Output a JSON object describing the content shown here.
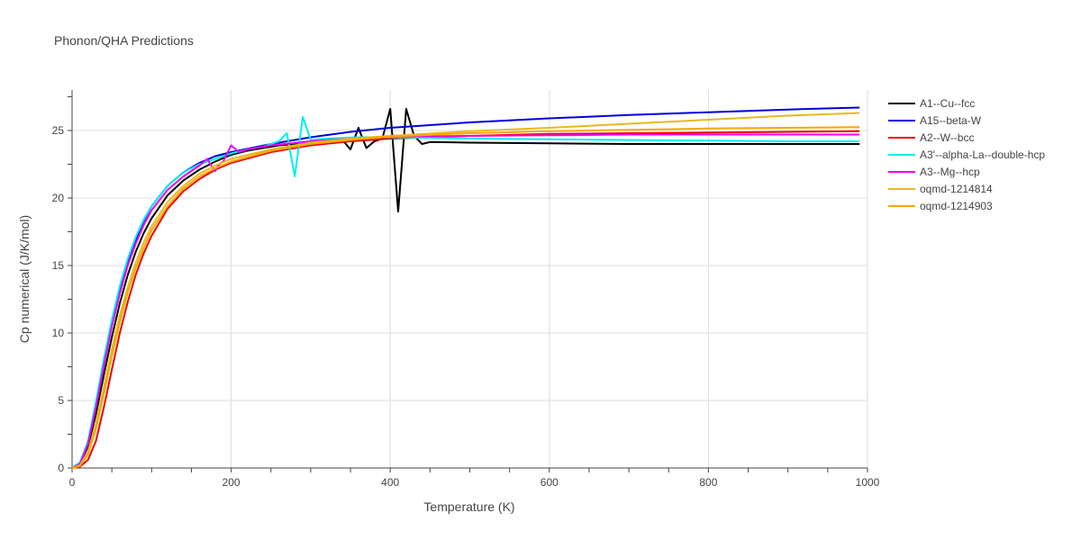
{
  "chart_data": {
    "type": "line",
    "title": "Phonon/QHA Predictions",
    "xlabel": "Temperature (K)",
    "ylabel": "Cp numerical (J/K/mol)",
    "xlim": [
      0,
      1000
    ],
    "ylim": [
      0,
      28
    ],
    "xticks": [
      0,
      200,
      400,
      600,
      800,
      1000
    ],
    "yticks": [
      0,
      5,
      10,
      15,
      20,
      25
    ],
    "grid": true,
    "legend_position": "right",
    "series": [
      {
        "name": "A1--Cu--fcc",
        "color": "#000000",
        "x": [
          0,
          10,
          20,
          30,
          40,
          50,
          60,
          70,
          80,
          90,
          100,
          120,
          140,
          160,
          180,
          200,
          220,
          240,
          260,
          280,
          300,
          320,
          340,
          350,
          360,
          370,
          380,
          390,
          400,
          410,
          420,
          430,
          440,
          450,
          500,
          600,
          700,
          800,
          900,
          990
        ],
        "y": [
          0,
          0.3,
          1.6,
          4.0,
          6.9,
          9.7,
          12.2,
          14.3,
          16.0,
          17.4,
          18.5,
          20.2,
          21.3,
          22.1,
          22.7,
          23.2,
          23.5,
          23.7,
          23.9,
          24.0,
          24.1,
          24.2,
          24.3,
          23.6,
          25.2,
          23.7,
          24.2,
          24.4,
          26.6,
          19.0,
          26.6,
          24.6,
          24.0,
          24.15,
          24.1,
          24.05,
          24.0,
          24.0,
          24.0,
          24.0
        ]
      },
      {
        "name": "A15--beta-W",
        "color": "#0000dd",
        "x": [
          0,
          10,
          20,
          30,
          40,
          50,
          60,
          70,
          80,
          90,
          100,
          120,
          140,
          160,
          180,
          200,
          250,
          300,
          350,
          400,
          500,
          600,
          700,
          800,
          900,
          990
        ],
        "y": [
          0,
          0.4,
          1.9,
          4.6,
          7.7,
          10.6,
          13.1,
          15.2,
          16.9,
          18.3,
          19.4,
          20.9,
          21.9,
          22.6,
          23.1,
          23.4,
          24.0,
          24.5,
          24.9,
          25.2,
          25.6,
          25.9,
          26.15,
          26.35,
          26.55,
          26.7
        ]
      },
      {
        "name": "A2--W--bcc",
        "color": "#ee0000",
        "x": [
          0,
          10,
          20,
          30,
          40,
          50,
          60,
          70,
          80,
          90,
          100,
          120,
          140,
          160,
          180,
          200,
          250,
          300,
          350,
          400,
          500,
          600,
          700,
          800,
          900,
          990
        ],
        "y": [
          0,
          0.1,
          0.6,
          2.0,
          4.5,
          7.3,
          10.0,
          12.3,
          14.3,
          15.9,
          17.2,
          19.2,
          20.5,
          21.4,
          22.1,
          22.6,
          23.4,
          23.9,
          24.2,
          24.4,
          24.6,
          24.75,
          24.8,
          24.85,
          24.9,
          24.95
        ]
      },
      {
        "name": "A3'--alpha-La--double-hcp",
        "color": "#00eeee",
        "x": [
          0,
          10,
          20,
          30,
          40,
          50,
          60,
          70,
          80,
          90,
          100,
          120,
          140,
          160,
          180,
          200,
          220,
          240,
          260,
          270,
          280,
          290,
          300,
          320,
          340,
          360,
          400,
          500,
          600,
          700,
          800,
          900,
          990
        ],
        "y": [
          0,
          0.4,
          2.0,
          4.9,
          8.1,
          11.0,
          13.5,
          15.5,
          17.1,
          18.4,
          19.4,
          20.9,
          21.9,
          22.5,
          22.9,
          23.3,
          23.6,
          23.8,
          24.2,
          24.8,
          21.6,
          26.0,
          24.3,
          24.4,
          24.45,
          24.5,
          24.5,
          24.4,
          24.35,
          24.3,
          24.25,
          24.2,
          24.2
        ]
      },
      {
        "name": "A3--Mg--hcp",
        "color": "#ee00ee",
        "x": [
          0,
          10,
          20,
          30,
          40,
          50,
          60,
          70,
          80,
          90,
          100,
          120,
          140,
          160,
          170,
          175,
          180,
          185,
          190,
          200,
          210,
          220,
          250,
          300,
          350,
          400,
          500,
          600,
          700,
          800,
          900,
          990
        ],
        "y": [
          0,
          0.3,
          1.8,
          4.5,
          7.6,
          10.5,
          12.9,
          15.0,
          16.6,
          18.0,
          19.1,
          20.6,
          21.6,
          22.4,
          22.9,
          22.4,
          22.0,
          22.5,
          22.7,
          23.9,
          23.4,
          23.6,
          23.9,
          24.2,
          24.4,
          24.55,
          24.6,
          24.65,
          24.7,
          24.7,
          24.7,
          24.7
        ]
      },
      {
        "name": "oqmd-1214814",
        "color": "#e8b820",
        "x": [
          0,
          10,
          20,
          30,
          40,
          50,
          60,
          70,
          80,
          90,
          100,
          120,
          140,
          160,
          180,
          200,
          250,
          300,
          350,
          400,
          500,
          600,
          700,
          800,
          900,
          990
        ],
        "y": [
          0,
          0.2,
          1.2,
          3.3,
          6.0,
          8.8,
          11.3,
          13.4,
          15.2,
          16.7,
          17.9,
          19.7,
          20.9,
          21.8,
          22.4,
          22.9,
          23.6,
          24.1,
          24.4,
          24.6,
          24.95,
          25.2,
          25.5,
          25.8,
          26.1,
          26.3
        ]
      },
      {
        "name": "oqmd-1214903",
        "color": "#f5a800",
        "x": [
          0,
          10,
          20,
          30,
          40,
          50,
          60,
          70,
          80,
          90,
          100,
          120,
          140,
          160,
          180,
          200,
          250,
          300,
          350,
          400,
          500,
          600,
          700,
          800,
          900,
          990
        ],
        "y": [
          0,
          0.15,
          1.0,
          2.9,
          5.5,
          8.3,
          10.8,
          13.0,
          14.8,
          16.3,
          17.6,
          19.4,
          20.7,
          21.6,
          22.2,
          22.7,
          23.5,
          24.0,
          24.3,
          24.55,
          24.8,
          24.95,
          25.05,
          25.15,
          25.2,
          25.25
        ]
      }
    ]
  }
}
